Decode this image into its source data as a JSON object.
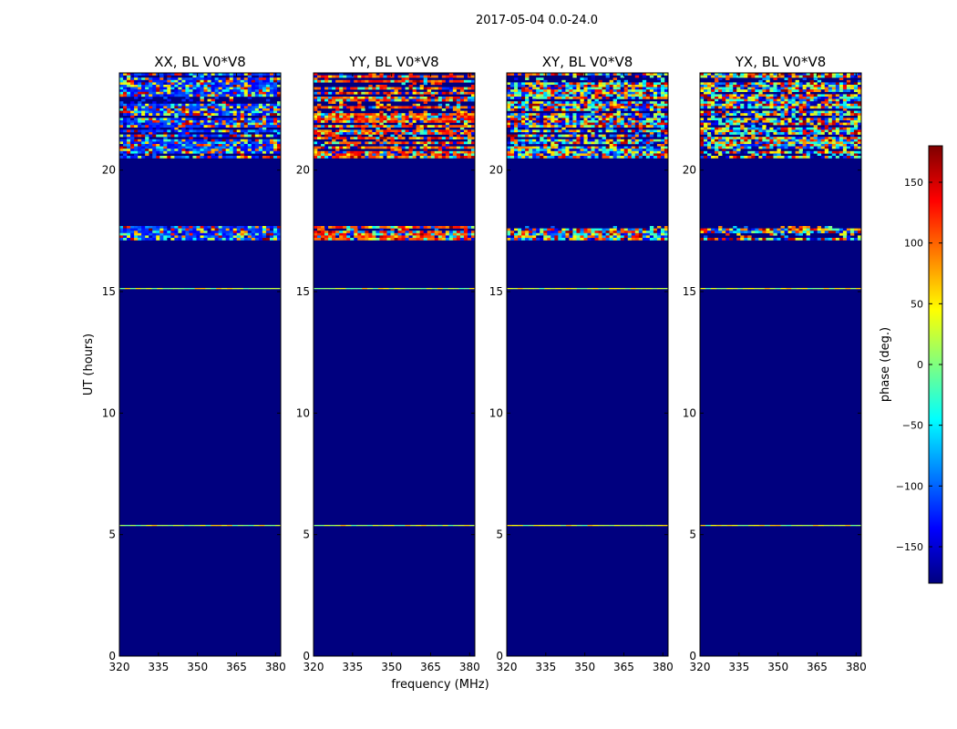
{
  "chart_data": {
    "type": "heatmap",
    "title": "2017-05-04 0.0-24.0",
    "ylabel": "UT (hours)",
    "xlabel": "frequency (MHz)",
    "xlim": [
      320,
      382
    ],
    "ylim": [
      0,
      24
    ],
    "xticks": [
      "320",
      "335",
      "350",
      "365",
      "380"
    ],
    "yticks": [
      "0",
      "5",
      "10",
      "15",
      "20"
    ],
    "colormap": "jet",
    "panels": [
      {
        "title": "XX, BL V0*V8",
        "polarization": "XX",
        "band_bias": "blue"
      },
      {
        "title": "YY, BL V0*V8",
        "polarization": "YY",
        "band_bias": "red"
      },
      {
        "title": "XY, BL V0*V8",
        "polarization": "XY",
        "band_bias": "mixed"
      },
      {
        "title": "YX, BL V0*V8",
        "polarization": "YX",
        "band_bias": "mixed"
      }
    ],
    "colorbar": {
      "label": "phase (deg.)",
      "range": [
        -180,
        180
      ],
      "ticks": [
        "150",
        "100",
        "50",
        "0",
        "−50",
        "−100",
        "−150"
      ],
      "tick_values": [
        150,
        100,
        50,
        0,
        -50,
        -100,
        -150
      ],
      "colors": [
        "#00007f",
        "#0000ff",
        "#007fff",
        "#00ffff",
        "#7fff7f",
        "#ffff00",
        "#ff7f00",
        "#ff0000",
        "#7f0000"
      ]
    },
    "bands_ut": [
      {
        "from": 20.5,
        "to": 24.0,
        "kind": "noisy"
      },
      {
        "from": 17.1,
        "to": 17.7,
        "kind": "noisy"
      },
      {
        "from": 15.1,
        "to": 15.15,
        "kind": "line"
      },
      {
        "from": 5.35,
        "to": 5.4,
        "kind": "line"
      }
    ]
  }
}
